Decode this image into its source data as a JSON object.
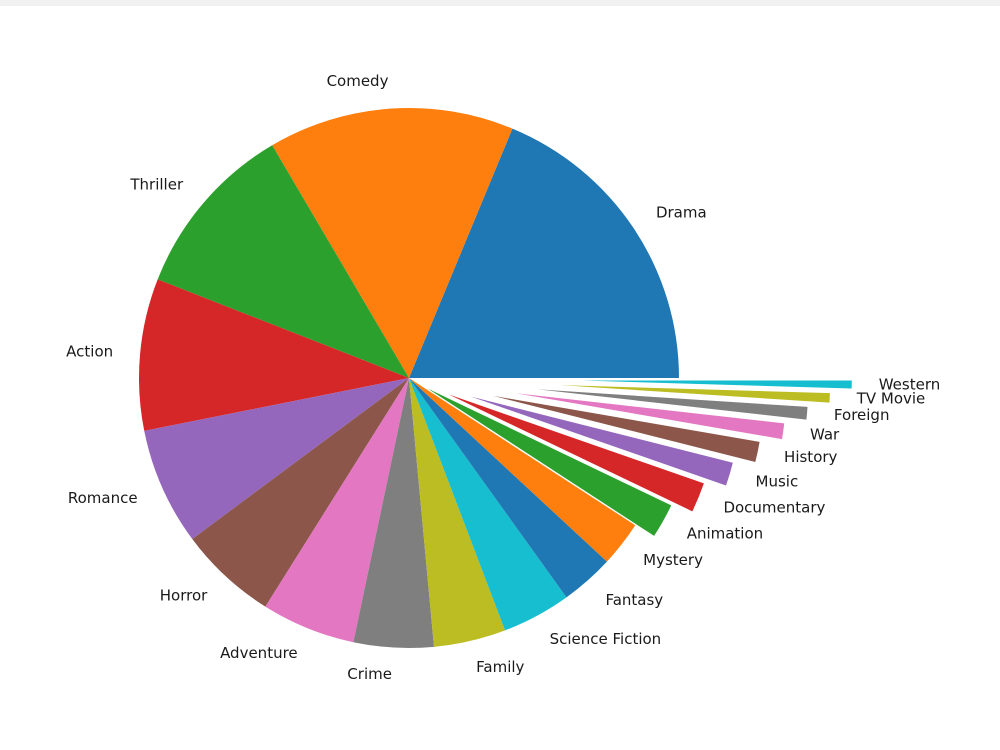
{
  "chart_data": {
    "type": "pie",
    "title": "",
    "start_angle_deg": 0,
    "direction": "counterclockwise",
    "explode_pattern": "small slices pulled outward progressively (explode values in radius fractions)",
    "slices": [
      {
        "label": "Drama",
        "value": 20.0,
        "color": "#1f77b4",
        "explode": 0.0
      },
      {
        "label": "Comedy",
        "value": 15.7,
        "color": "#ff7f0e",
        "explode": 0.0
      },
      {
        "label": "Thriller",
        "value": 11.3,
        "color": "#2ca02c",
        "explode": 0.0
      },
      {
        "label": "Action",
        "value": 9.7,
        "color": "#d62728",
        "explode": 0.0
      },
      {
        "label": "Romance",
        "value": 7.5,
        "color": "#9467bd",
        "explode": 0.0
      },
      {
        "label": "Horror",
        "value": 6.3,
        "color": "#8c564b",
        "explode": 0.0
      },
      {
        "label": "Adventure",
        "value": 6.0,
        "color": "#e377c2",
        "explode": 0.0
      },
      {
        "label": "Crime",
        "value": 5.1,
        "color": "#7f7f7f",
        "explode": 0.0
      },
      {
        "label": "Family",
        "value": 4.6,
        "color": "#bcbd22",
        "explode": 0.0
      },
      {
        "label": "Science Fiction",
        "value": 4.4,
        "color": "#17becf",
        "explode": 0.0
      },
      {
        "label": "Fantasy",
        "value": 3.4,
        "color": "#1f77b4",
        "explode": 0.0
      },
      {
        "label": "Mystery",
        "value": 2.9,
        "color": "#ff7f0e",
        "explode": 0.0
      },
      {
        "label": "Animation",
        "value": 2.2,
        "color": "#2ca02c",
        "explode": 0.08
      },
      {
        "label": "Documentary",
        "value": 1.9,
        "color": "#d62728",
        "explode": 0.16
      },
      {
        "label": "Music",
        "value": 1.5,
        "color": "#9467bd",
        "explode": 0.24
      },
      {
        "label": "History",
        "value": 1.3,
        "color": "#8c564b",
        "explode": 0.32
      },
      {
        "label": "War",
        "value": 1.0,
        "color": "#e377c2",
        "explode": 0.4
      },
      {
        "label": "Foreign",
        "value": 0.8,
        "color": "#7f7f7f",
        "explode": 0.48
      },
      {
        "label": "TV Movie",
        "value": 0.6,
        "color": "#bcbd22",
        "explode": 0.56
      },
      {
        "label": "Western",
        "value": 0.5,
        "color": "#17becf",
        "explode": 0.64
      }
    ]
  }
}
